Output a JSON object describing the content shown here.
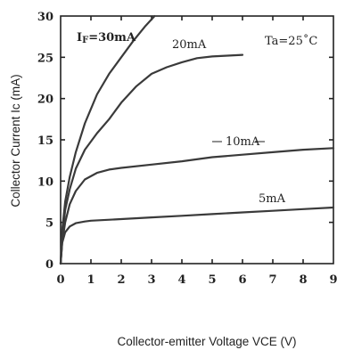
{
  "chart_data": {
    "type": "line",
    "xlabel": "Collector-emitter Voltage VCE (V)",
    "ylabel": "Collector Current Ic (mA)",
    "xlim": [
      0,
      9
    ],
    "ylim": [
      0,
      30
    ],
    "xticks": [
      "0",
      "1",
      "2",
      "3",
      "4",
      "5",
      "6",
      "7",
      "8",
      "9"
    ],
    "yticks": [
      "0",
      "5",
      "10",
      "15",
      "20",
      "25",
      "30"
    ],
    "condition": "Ta=25˚C",
    "grid": false,
    "series": [
      {
        "name": "IF=30mA",
        "x": [
          0,
          0.05,
          0.15,
          0.3,
          0.5,
          0.8,
          1.2,
          1.6,
          2.0,
          2.4,
          2.8,
          3.1
        ],
        "y": [
          0,
          4.0,
          7.5,
          10.5,
          13.5,
          17.0,
          20.5,
          23.0,
          25.0,
          27.0,
          28.8,
          30.0
        ]
      },
      {
        "name": "20mA",
        "x": [
          0,
          0.05,
          0.15,
          0.3,
          0.5,
          0.8,
          1.2,
          1.6,
          2.0,
          2.5,
          3.0,
          3.5,
          4.0,
          4.5,
          5.0,
          5.5,
          6.0
        ],
        "y": [
          0,
          3.0,
          6.5,
          9.0,
          11.5,
          13.8,
          15.8,
          17.5,
          19.5,
          21.5,
          23.0,
          23.8,
          24.4,
          24.9,
          25.1,
          25.2,
          25.3
        ]
      },
      {
        "name": "10mA",
        "x": [
          0,
          0.05,
          0.15,
          0.3,
          0.5,
          0.8,
          1.2,
          1.6,
          2.0,
          3.0,
          4.0,
          5.0,
          6.0,
          7.0,
          8.0,
          9.0
        ],
        "y": [
          0,
          2.5,
          5.0,
          7.2,
          8.8,
          10.2,
          11.0,
          11.4,
          11.6,
          12.0,
          12.4,
          12.9,
          13.2,
          13.5,
          13.8,
          14.0
        ]
      },
      {
        "name": "5mA",
        "x": [
          0,
          0.05,
          0.15,
          0.3,
          0.5,
          0.8,
          1.0,
          2.0,
          3.0,
          4.0,
          5.0,
          6.0,
          7.0,
          8.0,
          9.0
        ],
        "y": [
          0,
          2.5,
          3.8,
          4.5,
          4.9,
          5.1,
          5.2,
          5.4,
          5.6,
          5.8,
          6.0,
          6.2,
          6.4,
          6.6,
          6.8
        ]
      }
    ],
    "labels": {
      "s30": {
        "pre": "I",
        "sub": "F",
        "post": "=30mA"
      },
      "s20": "20mA",
      "s10": "10mA",
      "s5": "5mA"
    }
  }
}
